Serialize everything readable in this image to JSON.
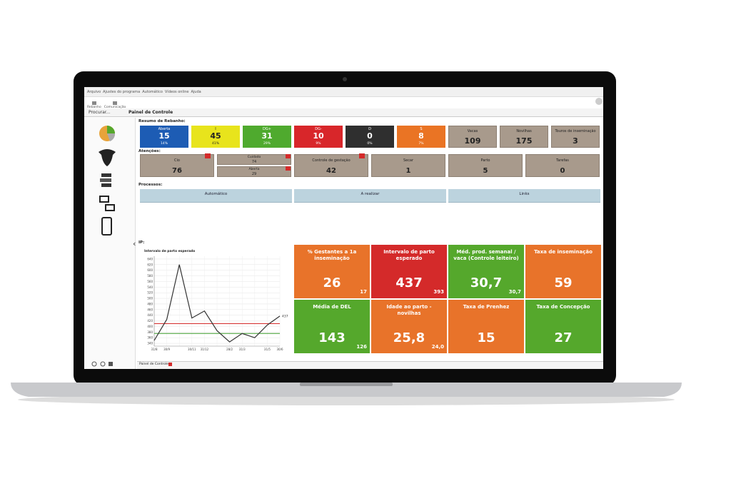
{
  "menu": [
    "Arquivo",
    "Ajustes do programa",
    "Automático",
    "Vídeos online",
    "Ajuda"
  ],
  "toolbar": [
    "Rebanho",
    "Comunicação"
  ],
  "search": "Procurar...",
  "panel_title": "Painel de Controle",
  "herd": {
    "label": "Resumo de Rebanho:",
    "tiles": [
      {
        "name": "Aberta",
        "value": "15",
        "percent": "14%",
        "color": "#1d5cb4"
      },
      {
        "name": "I",
        "value": "45",
        "percent": "41%",
        "color": "#e8e41c"
      },
      {
        "name": "DG+",
        "value": "31",
        "percent": "29%",
        "color": "#4faa2e"
      },
      {
        "name": "DG-",
        "value": "10",
        "percent": "9%",
        "color": "#d8262a"
      },
      {
        "name": "D",
        "value": "0",
        "percent": "0%",
        "color": "#2f2f2f"
      },
      {
        "name": "S",
        "value": "8",
        "percent": "7%",
        "color": "#ea7424"
      },
      {
        "name": "Vacas",
        "value": "109"
      },
      {
        "name": "Novilhas",
        "value": "175"
      },
      {
        "name": "Touros de inseminação",
        "value": "3"
      }
    ]
  },
  "attention": {
    "label": "Atenções:",
    "tiles": [
      {
        "name": "Cio",
        "value": "76"
      },
      {
        "parts": [
          {
            "name": "Cuidado",
            "value": "74"
          },
          {
            "name": "Aberta",
            "value": "29"
          }
        ]
      },
      {
        "name": "Controle de gestação",
        "value": "42"
      },
      {
        "name": "Secar",
        "value": "1"
      },
      {
        "name": "Parto",
        "value": "5"
      },
      {
        "name": "Tarefas",
        "value": "0"
      }
    ]
  },
  "processes": {
    "label": "Processos:",
    "tabs": [
      "Automático",
      "A realizar",
      "Links"
    ]
  },
  "ip": {
    "label": "IP:",
    "chart": {
      "title": "Intervalo de parto esperado",
      "categories": [
        "31/8",
        "30/9",
        null,
        "30/11",
        "31/12",
        null,
        "28/2",
        "31/3",
        null,
        "31/5",
        "30/6"
      ],
      "series": [
        {
          "color": "#333333",
          "values": [
            350,
            425,
            620,
            430,
            455,
            385,
            345,
            375,
            360,
            405,
            437
          ]
        }
      ],
      "reference_lines": [
        {
          "value": 410,
          "color": "#d42a2a"
        },
        {
          "value": 375,
          "color": "#3a9a2a"
        }
      ],
      "ylim": [
        330,
        650
      ],
      "yticks": [
        340,
        360,
        380,
        400,
        420,
        440,
        460,
        480,
        500,
        520,
        540,
        560,
        580,
        600,
        620,
        640
      ],
      "grid": true
    },
    "kpis": [
      {
        "title": "% Gestantes a 1a inseminação",
        "value": "26",
        "sub": "17",
        "color": "#e8732a"
      },
      {
        "title": "Intervalo de parto esperado",
        "value": "437",
        "sub": "393",
        "color": "#d42a2a"
      },
      {
        "title": "Méd. prod. semanal / vaca (Controle leiteiro)",
        "value": "30,7",
        "sub": "30,7",
        "color": "#55a82c"
      },
      {
        "title": "Taxa de inseminação",
        "value": "59",
        "color": "#e8732a"
      },
      {
        "title": "Média de DEL",
        "value": "143",
        "sub": "126",
        "color": "#55a82c"
      },
      {
        "title": "Idade ao parto - novilhas",
        "value": "25,8",
        "sub": "24,0",
        "color": "#e8732a"
      },
      {
        "title": "Taxa de Prenhez",
        "value": "15",
        "color": "#e8732a"
      },
      {
        "title": "Taxa de Concepção",
        "value": "27",
        "color": "#55a82c"
      }
    ]
  },
  "bottom_tab": "Painel de Controle"
}
